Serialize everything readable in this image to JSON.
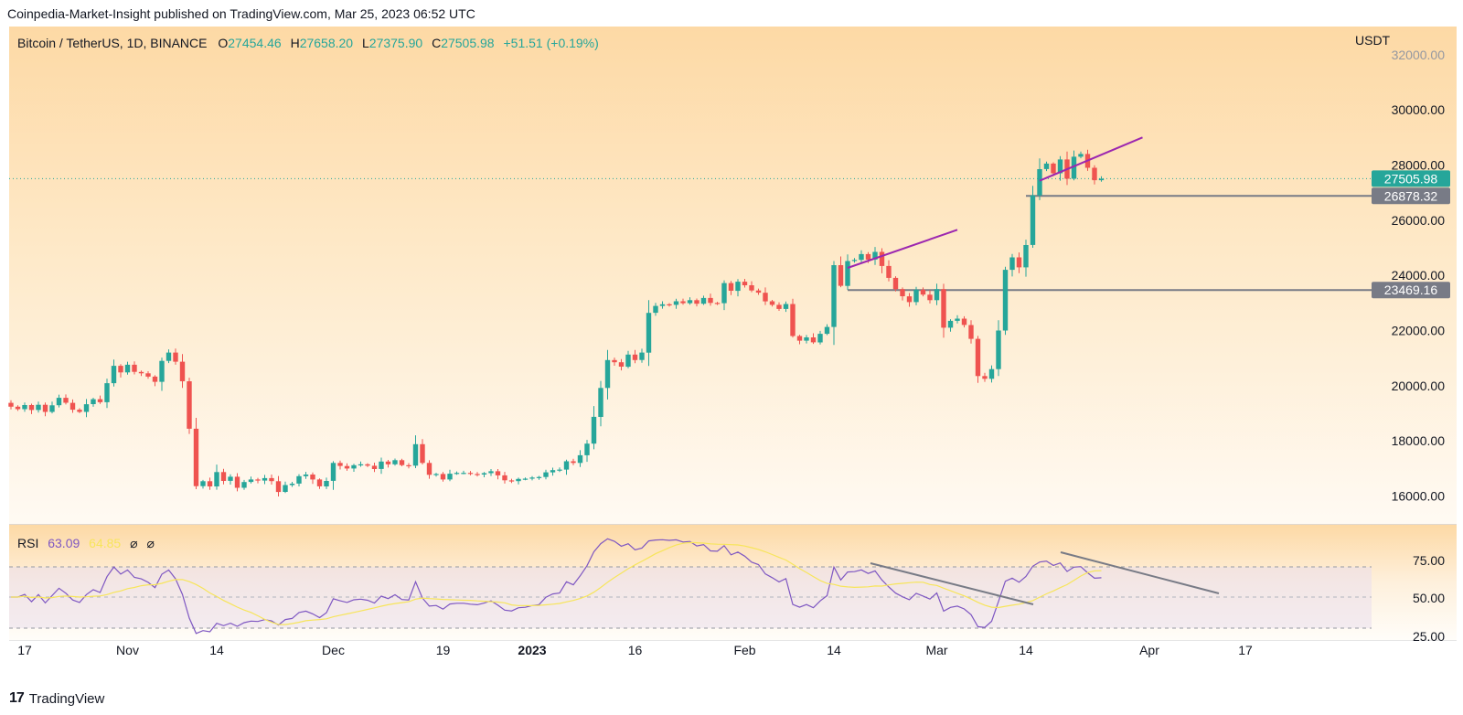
{
  "header": {
    "publish_line": "Coinpedia-Market-Insight published on TradingView.com, Mar 25, 2023 06:52 UTC"
  },
  "legend": {
    "symbol": "Bitcoin / TetherUS, 1D, BINANCE",
    "open_label": "O",
    "open": "27454.46",
    "high_label": "H",
    "high": "27658.20",
    "low_label": "L",
    "low": "27375.90",
    "close_label": "C",
    "close": "27505.98",
    "change": "+51.51 (+0.19%)"
  },
  "rsi_legend": {
    "label": "RSI",
    "value": "63.09",
    "ma_value": "64.85",
    "glyph1": "⌀",
    "glyph2": "⌀"
  },
  "footer": {
    "logo": "17",
    "brand": "TradingView"
  },
  "colors": {
    "up": "#26a69a",
    "down": "#ef5350",
    "trend_purple": "#9c27b0",
    "level_line": "#787b86",
    "rsi_line": "#7e57c2",
    "rsi_ma": "#f7e55a",
    "bg_top": "#fdd9a5",
    "bg_bottom": "#fffaf3"
  },
  "chart_data": {
    "type": "candlestick",
    "quote_currency": "USDT",
    "y_ticks": [
      "32000.00",
      "30000.00",
      "28000.00",
      "26000.00",
      "24000.00",
      "22000.00",
      "20000.00",
      "18000.00",
      "16000.00"
    ],
    "ylim": [
      15400,
      32400
    ],
    "x_ticks": [
      {
        "label": "17",
        "index": 2,
        "bold": false
      },
      {
        "label": "Nov",
        "index": 17,
        "bold": false
      },
      {
        "label": "14",
        "index": 30,
        "bold": false
      },
      {
        "label": "Dec",
        "index": 47,
        "bold": false
      },
      {
        "label": "19",
        "index": 63,
        "bold": false
      },
      {
        "label": "2023",
        "index": 76,
        "bold": true
      },
      {
        "label": "16",
        "index": 91,
        "bold": false
      },
      {
        "label": "Feb",
        "index": 107,
        "bold": false
      },
      {
        "label": "14",
        "index": 120,
        "bold": false
      },
      {
        "label": "Mar",
        "index": 135,
        "bold": false
      },
      {
        "label": "14",
        "index": 148,
        "bold": false
      },
      {
        "label": "Apr",
        "index": 166,
        "bold": false
      },
      {
        "label": "17",
        "index": 180,
        "bold": false
      }
    ],
    "price_labels": [
      {
        "value": 27505.98,
        "text": "27505.98",
        "kind": "last"
      },
      {
        "value": 26878.32,
        "text": "26878.32",
        "kind": "level"
      },
      {
        "value": 23469.16,
        "text": "23469.16",
        "kind": "level"
      }
    ],
    "close": [
      19240,
      19150,
      19300,
      19120,
      19310,
      19050,
      19290,
      19560,
      19380,
      19130,
      19050,
      19330,
      19510,
      19400,
      20090,
      20720,
      20480,
      20760,
      20500,
      20450,
      20330,
      20140,
      20900,
      21200,
      20870,
      20160,
      18440,
      16360,
      16540,
      16350,
      16870,
      16550,
      16700,
      16300,
      16510,
      16600,
      16560,
      16650,
      16540,
      16150,
      16400,
      16450,
      16720,
      16780,
      16600,
      16350,
      16550,
      17200,
      17090,
      17000,
      17120,
      17150,
      17100,
      16980,
      17250,
      17150,
      17300,
      17120,
      17100,
      17880,
      17200,
      16770,
      16800,
      16600,
      16810,
      16840,
      16840,
      16800,
      16780,
      16830,
      16900,
      16750,
      16570,
      16540,
      16620,
      16630,
      16670,
      16690,
      16860,
      16940,
      16960,
      17260,
      17200,
      17480,
      17900,
      18870,
      19920,
      20930,
      20850,
      20690,
      21130,
      20930,
      21200,
      22640,
      22890,
      22950,
      22930,
      23060,
      22990,
      23100,
      22970,
      23180,
      23000,
      22990,
      23720,
      23440,
      23770,
      23640,
      23450,
      23370,
      23060,
      22930,
      22780,
      22960,
      21800,
      21630,
      21750,
      21570,
      21880,
      22130,
      24370,
      23620,
      24520,
      24560,
      24770,
      24570,
      24850,
      24340,
      23910,
      23500,
      23240,
      23030,
      23480,
      23300,
      23100,
      23500,
      22100,
      22350,
      22430,
      22200,
      21700,
      20350,
      20250,
      20600,
      22000,
      24200,
      24650,
      24290,
      25100,
      26900,
      27850,
      28050,
      27700,
      28200,
      27500,
      28300,
      28400,
      27900,
      27450,
      27505.98
    ]
  }
}
